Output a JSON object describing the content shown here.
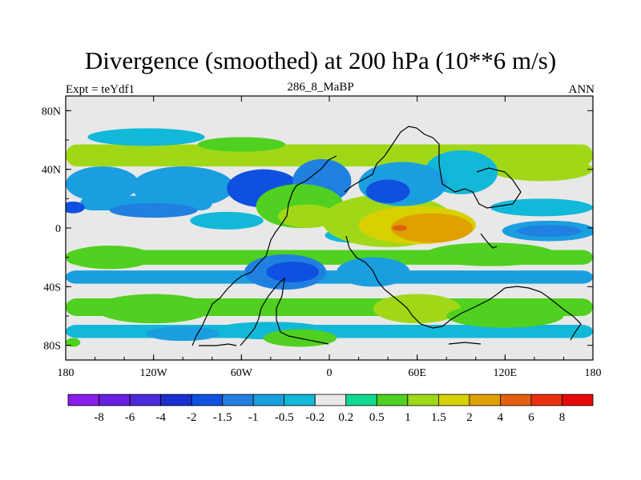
{
  "chart_data": {
    "type": "heatmap",
    "title": "Divergence (smoothed) at 200 hPa (10**6 m/s)",
    "subtitle_left": "Expt = teYdf1",
    "subtitle_center": "286_8_MaBP",
    "subtitle_right": "ANN",
    "x_axis": {
      "range": [
        -180,
        180
      ],
      "ticks": [
        {
          "value": -180,
          "label": "180"
        },
        {
          "value": -120,
          "label": "120W"
        },
        {
          "value": -60,
          "label": "60W"
        },
        {
          "value": 0,
          "label": "0"
        },
        {
          "value": 60,
          "label": "60E"
        },
        {
          "value": 120,
          "label": "120E"
        },
        {
          "value": 180,
          "label": "180"
        }
      ]
    },
    "y_axis": {
      "range": [
        -90,
        90
      ],
      "ticks": [
        {
          "value": 80,
          "label": "80N"
        },
        {
          "value": 40,
          "label": "40N"
        },
        {
          "value": 0,
          "label": "0"
        },
        {
          "value": -40,
          "label": "40S"
        },
        {
          "value": -80,
          "label": "80S"
        }
      ]
    },
    "colorbar": {
      "levels": [
        "-8",
        "-6",
        "-4",
        "-2",
        "-1.5",
        "-1",
        "-0.5",
        "-0.2",
        "0.2",
        "0.5",
        "1",
        "1.5",
        "2",
        "4",
        "6",
        "8"
      ],
      "colors": [
        "#8a1be8",
        "#6a1fe0",
        "#4a2ad8",
        "#1a30d0",
        "#1050e0",
        "#2080e0",
        "#1a9ee0",
        "#12b8d8",
        "#e8e8e8",
        "#10d890",
        "#50d020",
        "#a0d818",
        "#d8d000",
        "#e0a000",
        "#e06010",
        "#e83010",
        "#e80808"
      ]
    },
    "regions": [
      {
        "shape": "band",
        "lon": [
          -180,
          180
        ],
        "lat": [
          42,
          57
        ],
        "value": 1
      },
      {
        "shape": "band",
        "lon": [
          -180,
          180
        ],
        "lat": [
          -25,
          -15
        ],
        "value": 0.5
      },
      {
        "shape": "band",
        "lon": [
          -180,
          180
        ],
        "lat": [
          -60,
          -48
        ],
        "value": 0.5
      },
      {
        "shape": "band",
        "lon": [
          -180,
          180
        ],
        "lat": [
          -38,
          -29
        ],
        "value": -1
      },
      {
        "shape": "band",
        "lon": [
          -180,
          180
        ],
        "lat": [
          -75,
          -66
        ],
        "value": -0.5
      },
      {
        "shape": "band",
        "lon": [
          -170,
          -80
        ],
        "lat": [
          12,
          22
        ],
        "value": -1
      },
      {
        "shape": "ellipse",
        "lon": -125,
        "lat": 62,
        "rx": 40,
        "ry": 6,
        "value": -0.5
      },
      {
        "shape": "ellipse",
        "lon": -60,
        "lat": 57,
        "rx": 30,
        "ry": 5,
        "value": 0.5
      },
      {
        "shape": "ellipse",
        "lon": -155,
        "lat": 30,
        "rx": 25,
        "ry": 12,
        "value": -1
      },
      {
        "shape": "ellipse",
        "lon": -100,
        "lat": 28,
        "rx": 35,
        "ry": 14,
        "value": -1
      },
      {
        "shape": "ellipse",
        "lon": -45,
        "lat": 27,
        "rx": 25,
        "ry": 13,
        "value": -2
      },
      {
        "shape": "ellipse",
        "lon": -5,
        "lat": 32,
        "rx": 20,
        "ry": 15,
        "value": -1.5
      },
      {
        "shape": "ellipse",
        "lon": -120,
        "lat": 12,
        "rx": 30,
        "ry": 5,
        "value": -1.5
      },
      {
        "shape": "ellipse",
        "lon": -70,
        "lat": 5,
        "rx": 25,
        "ry": 6,
        "value": -0.5
      },
      {
        "shape": "ellipse",
        "lon": -175,
        "lat": 14,
        "rx": 8,
        "ry": 4,
        "value": -2
      },
      {
        "shape": "ellipse",
        "lon": 15,
        "lat": -5,
        "rx": 18,
        "ry": 5,
        "value": -0.5
      },
      {
        "shape": "ellipse",
        "lon": -20,
        "lat": 15,
        "rx": 30,
        "ry": 15,
        "value": 0.5
      },
      {
        "shape": "ellipse",
        "lon": -15,
        "lat": 8,
        "rx": 20,
        "ry": 8,
        "value": 1
      },
      {
        "shape": "ellipse",
        "lon": 40,
        "lat": 5,
        "rx": 45,
        "ry": 18,
        "value": 1
      },
      {
        "shape": "ellipse",
        "lon": 60,
        "lat": 2,
        "rx": 40,
        "ry": 13,
        "value": 1.5
      },
      {
        "shape": "ellipse",
        "lon": 70,
        "lat": 0,
        "rx": 28,
        "ry": 10,
        "value": 2
      },
      {
        "shape": "ellipse",
        "lon": 48,
        "lat": 0,
        "rx": 5,
        "ry": 2,
        "value": 4
      },
      {
        "shape": "ellipse",
        "lon": 150,
        "lat": -2,
        "rx": 32,
        "ry": 7,
        "value": -1
      },
      {
        "shape": "ellipse",
        "lon": 150,
        "lat": -2,
        "rx": 22,
        "ry": 4,
        "value": -1.5
      },
      {
        "shape": "ellipse",
        "lon": 145,
        "lat": 14,
        "rx": 35,
        "ry": 6,
        "value": -0.5
      },
      {
        "shape": "ellipse",
        "lon": 145,
        "lat": 40,
        "rx": 35,
        "ry": 8,
        "value": 1
      },
      {
        "shape": "ellipse",
        "lon": 90,
        "lat": 38,
        "rx": 25,
        "ry": 15,
        "value": -0.5
      },
      {
        "shape": "ellipse",
        "lon": 50,
        "lat": 30,
        "rx": 30,
        "ry": 15,
        "value": -1
      },
      {
        "shape": "ellipse",
        "lon": 40,
        "lat": 25,
        "rx": 15,
        "ry": 8,
        "value": -2
      },
      {
        "shape": "ellipse",
        "lon": 110,
        "lat": -18,
        "rx": 45,
        "ry": 8,
        "value": 0.5
      },
      {
        "shape": "ellipse",
        "lon": -150,
        "lat": -20,
        "rx": 30,
        "ry": 8,
        "value": 0.5
      },
      {
        "shape": "ellipse",
        "lon": -30,
        "lat": -30,
        "rx": 28,
        "ry": 12,
        "value": -1.5
      },
      {
        "shape": "ellipse",
        "lon": -25,
        "lat": -30,
        "rx": 18,
        "ry": 7,
        "value": -2
      },
      {
        "shape": "ellipse",
        "lon": 30,
        "lat": -30,
        "rx": 25,
        "ry": 10,
        "value": -1
      },
      {
        "shape": "ellipse",
        "lon": 60,
        "lat": -55,
        "rx": 30,
        "ry": 10,
        "value": 1
      },
      {
        "shape": "ellipse",
        "lon": -120,
        "lat": -55,
        "rx": 40,
        "ry": 10,
        "value": 0.5
      },
      {
        "shape": "ellipse",
        "lon": 120,
        "lat": -60,
        "rx": 40,
        "ry": 8,
        "value": 0.5
      },
      {
        "shape": "ellipse",
        "lon": -40,
        "lat": -70,
        "rx": 40,
        "ry": 6,
        "value": -0.5
      },
      {
        "shape": "ellipse",
        "lon": -100,
        "lat": -72,
        "rx": 25,
        "ry": 5,
        "value": -1
      },
      {
        "shape": "ellipse",
        "lon": -20,
        "lat": -75,
        "rx": 25,
        "ry": 6,
        "value": 0.5
      },
      {
        "shape": "ellipse",
        "lon": -175,
        "lat": -78,
        "rx": 5,
        "ry": 3,
        "value": 0.5
      }
    ]
  }
}
